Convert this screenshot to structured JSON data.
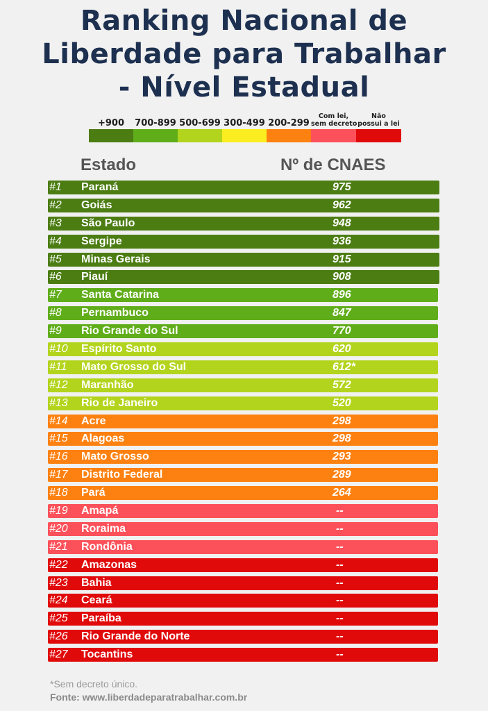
{
  "title": [
    "Ranking Nacional de",
    "Liberdade para Trabalhar",
    "- Nível Estadual"
  ],
  "legend": [
    {
      "label": "+900",
      "color": "#4c7d13"
    },
    {
      "label": "700-899",
      "color": "#60ad1a"
    },
    {
      "label": "500-699",
      "color": "#b3d41d"
    },
    {
      "label": "300-499",
      "color": "#fbee20"
    },
    {
      "label": "200-299",
      "color": "#fd8111"
    },
    {
      "label": "Com lei,\nsem decreto",
      "color": "#fc515a"
    },
    {
      "label": "Não\npossui a lei",
      "color": "#e00a0b"
    }
  ],
  "headers": {
    "state": "Estado",
    "cnaes": "Nº de CNAES"
  },
  "chart_data": {
    "type": "table",
    "columns": [
      "Estado",
      "Nº de CNAES"
    ],
    "rows": [
      {
        "rank": "#1",
        "state": "Paraná",
        "value": "975",
        "tier": 0
      },
      {
        "rank": "#2",
        "state": "Goiás",
        "value": "962",
        "tier": 0
      },
      {
        "rank": "#3",
        "state": "São Paulo",
        "value": "948",
        "tier": 0
      },
      {
        "rank": "#4",
        "state": "Sergipe",
        "value": "936",
        "tier": 0
      },
      {
        "rank": "#5",
        "state": "Minas Gerais",
        "value": "915",
        "tier": 0
      },
      {
        "rank": "#6",
        "state": "Piauí",
        "value": "908",
        "tier": 0
      },
      {
        "rank": "#7",
        "state": "Santa Catarina",
        "value": "896",
        "tier": 1
      },
      {
        "rank": "#8",
        "state": "Pernambuco",
        "value": "847",
        "tier": 1
      },
      {
        "rank": "#9",
        "state": "Rio Grande do Sul",
        "value": "770",
        "tier": 1
      },
      {
        "rank": "#10",
        "state": "Espírito Santo",
        "value": "620",
        "tier": 2
      },
      {
        "rank": "#11",
        "state": "Mato Grosso do Sul",
        "value": "612*",
        "tier": 2
      },
      {
        "rank": "#12",
        "state": "Maranhão",
        "value": "572",
        "tier": 2
      },
      {
        "rank": "#13",
        "state": "Rio de Janeiro",
        "value": "520",
        "tier": 2
      },
      {
        "rank": "#14",
        "state": "Acre",
        "value": "298",
        "tier": 4
      },
      {
        "rank": "#15",
        "state": "Alagoas",
        "value": "298",
        "tier": 4
      },
      {
        "rank": "#16",
        "state": "Mato Grosso",
        "value": "293",
        "tier": 4
      },
      {
        "rank": "#17",
        "state": "Distrito Federal",
        "value": "289",
        "tier": 4
      },
      {
        "rank": "#18",
        "state": "Pará",
        "value": "264",
        "tier": 4
      },
      {
        "rank": "#19",
        "state": "Amapá",
        "value": "--",
        "tier": 5
      },
      {
        "rank": "#20",
        "state": "Roraima",
        "value": "--",
        "tier": 5
      },
      {
        "rank": "#21",
        "state": "Rondônia",
        "value": "--",
        "tier": 5
      },
      {
        "rank": "#22",
        "state": "Amazonas",
        "value": "--",
        "tier": 6
      },
      {
        "rank": "#23",
        "state": "Bahia",
        "value": "--",
        "tier": 6
      },
      {
        "rank": "#24",
        "state": "Ceará",
        "value": "--",
        "tier": 6
      },
      {
        "rank": "#25",
        "state": "Paraíba",
        "value": "--",
        "tier": 6
      },
      {
        "rank": "#26",
        "state": "Rio Grande do Norte",
        "value": "--",
        "tier": 6
      },
      {
        "rank": "#27",
        "state": "Tocantins",
        "value": "--",
        "tier": 6
      }
    ]
  },
  "footnote": "*Sem decreto único.",
  "source": "Fonte: www.liberdadeparatrabalhar.com.br"
}
